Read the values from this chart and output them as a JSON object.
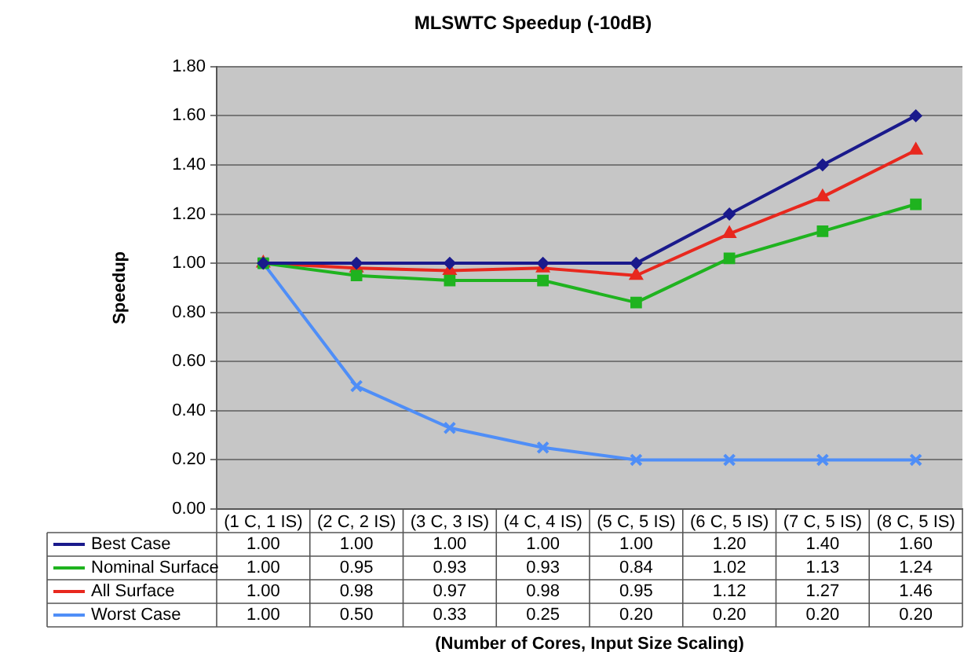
{
  "chart_data": {
    "type": "line",
    "title": "MLSWTC Speedup (-10dB)",
    "annotations": [
      "(Number of Cores, Input Size Scaling)"
    ],
    "ylabel": "Speedup",
    "categories": [
      "(1 C, 1 IS)",
      "(2 C, 2 IS)",
      "(3 C, 3 IS)",
      "(4 C, 4 IS)",
      "(5 C, 5 IS)",
      "(6 C, 5 IS)",
      "(7 C, 5 IS)",
      "(8 C, 5 IS)"
    ],
    "series": [
      {
        "name": "Best Case",
        "color": "#1a1a8c",
        "marker": "diamond",
        "values": [
          1.0,
          1.0,
          1.0,
          1.0,
          1.0,
          1.2,
          1.4,
          1.6
        ],
        "value_labels": [
          "1.00",
          "1.00",
          "1.00",
          "1.00",
          "1.00",
          "1.20",
          "1.40",
          "1.60"
        ]
      },
      {
        "name": "Nominal Surface",
        "color": "#1fb31f",
        "marker": "square",
        "values": [
          1.0,
          0.95,
          0.93,
          0.93,
          0.84,
          1.02,
          1.13,
          1.24
        ],
        "value_labels": [
          "1.00",
          "0.95",
          "0.93",
          "0.93",
          "0.84",
          "1.02",
          "1.13",
          "1.24"
        ]
      },
      {
        "name": "All Surface",
        "color": "#e8281e",
        "marker": "triangle",
        "values": [
          1.0,
          0.98,
          0.97,
          0.98,
          0.95,
          1.12,
          1.27,
          1.46
        ],
        "value_labels": [
          "1.00",
          "0.98",
          "0.97",
          "0.98",
          "0.95",
          "1.12",
          "1.27",
          "1.46"
        ]
      },
      {
        "name": "Worst Case",
        "color": "#4f8ef7",
        "marker": "cross",
        "values": [
          1.0,
          0.5,
          0.33,
          0.25,
          0.2,
          0.2,
          0.2,
          0.2
        ],
        "value_labels": [
          "1.00",
          "0.50",
          "0.33",
          "0.25",
          "0.20",
          "0.20",
          "0.20",
          "0.20"
        ]
      }
    ],
    "ylim": [
      0,
      1.8
    ],
    "yticks": [
      {
        "value": 0,
        "label": "0.00"
      },
      {
        "value": 0.2,
        "label": "0.20"
      },
      {
        "value": 0.4,
        "label": "0.40"
      },
      {
        "value": 0.6,
        "label": "0.60"
      },
      {
        "value": 0.8,
        "label": "0.80"
      },
      {
        "value": 1.0,
        "label": "1.00"
      },
      {
        "value": 1.2,
        "label": "1.20"
      },
      {
        "value": 1.4,
        "label": "1.40"
      },
      {
        "value": 1.6,
        "label": "1.60"
      },
      {
        "value": 1.8,
        "label": "1.80"
      }
    ],
    "grid": "y",
    "legend": "bottom",
    "line_style": "solid"
  }
}
